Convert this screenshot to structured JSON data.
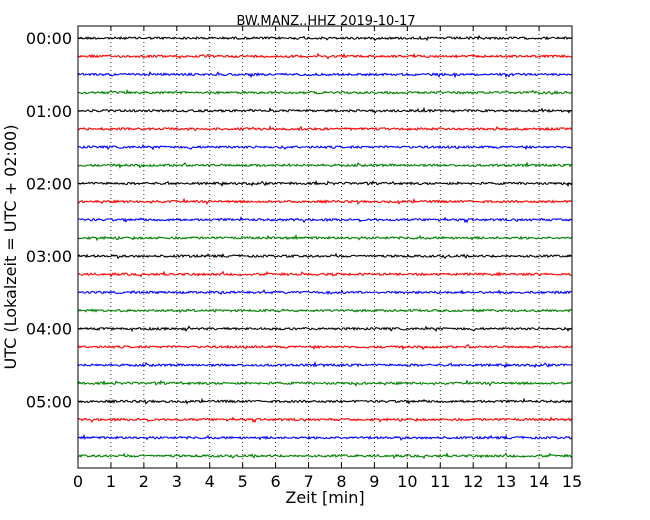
{
  "chart_data": {
    "type": "line",
    "title": "BW.MANZ..HHZ 2019-10-17",
    "xlabel": "Zeit  [min]",
    "ylabel": "UTC (Lokalzeit = UTC + 02:00)",
    "xlim": [
      0,
      15
    ],
    "x_ticks": [
      "0",
      "1",
      "2",
      "3",
      "4",
      "5",
      "6",
      "7",
      "8",
      "9",
      "10",
      "11",
      "12",
      "13",
      "14",
      "15"
    ],
    "y_tick_labels": [
      "00:00",
      "01:00",
      "02:00",
      "03:00",
      "04:00",
      "05:00"
    ],
    "trace_offsets_min": [
      0,
      15,
      30,
      45,
      60,
      75,
      90,
      105,
      120,
      135,
      150,
      165,
      180,
      195,
      210,
      225,
      240,
      255,
      270,
      285,
      300,
      315,
      330,
      345
    ],
    "trace_colors": [
      "#000000",
      "#ff0000",
      "#0000ff",
      "#008000"
    ],
    "x_grid": "dotted",
    "y_range_minutes": [
      -10,
      355
    ]
  }
}
